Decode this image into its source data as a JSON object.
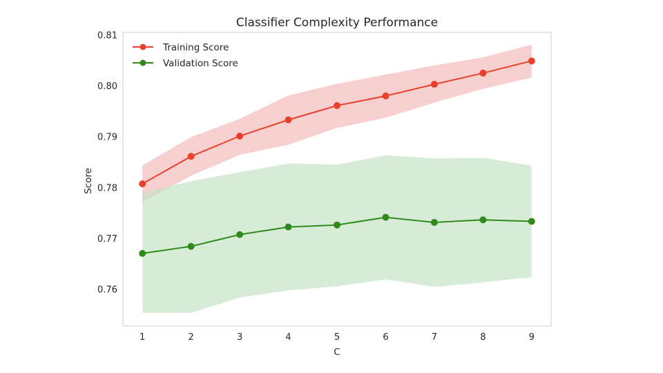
{
  "chart_data": {
    "type": "line",
    "title": "Classifier Complexity Performance",
    "xlabel": "C",
    "ylabel": "Score",
    "x": [
      1,
      2,
      3,
      4,
      5,
      6,
      7,
      8,
      9
    ],
    "xticks": [
      "1",
      "2",
      "3",
      "4",
      "5",
      "6",
      "7",
      "8",
      "9"
    ],
    "yticks": [
      "0.76",
      "0.77",
      "0.78",
      "0.79",
      "0.80",
      "0.81"
    ],
    "xlim": [
      0.6,
      9.4
    ],
    "ylim": [
      0.7527,
      0.8105
    ],
    "grid": false,
    "legend_position": "top-left",
    "series": [
      {
        "name": "Training Score",
        "color": "#e8402a",
        "band_color": "#f4b6b6",
        "values": [
          0.7807,
          0.7861,
          0.7901,
          0.7933,
          0.7961,
          0.798,
          0.8003,
          0.8025,
          0.8049
        ],
        "band_upper": [
          0.7843,
          0.7899,
          0.7935,
          0.7981,
          0.8004,
          0.8022,
          0.804,
          0.8056,
          0.8081
        ],
        "band_lower": [
          0.7771,
          0.7823,
          0.7864,
          0.7884,
          0.7917,
          0.7937,
          0.7967,
          0.7994,
          0.8016
        ]
      },
      {
        "name": "Validation Score",
        "color": "#2f8a1b",
        "band_color": "#c2e2c0",
        "values": [
          0.767,
          0.7684,
          0.7707,
          0.7722,
          0.7726,
          0.7741,
          0.7731,
          0.7736,
          0.7733
        ],
        "band_upper": [
          0.779,
          0.7812,
          0.783,
          0.7847,
          0.7845,
          0.7863,
          0.7857,
          0.7858,
          0.7843
        ],
        "band_lower": [
          0.7553,
          0.7553,
          0.7583,
          0.7597,
          0.7605,
          0.7619,
          0.7604,
          0.7613,
          0.7623
        ]
      }
    ]
  }
}
